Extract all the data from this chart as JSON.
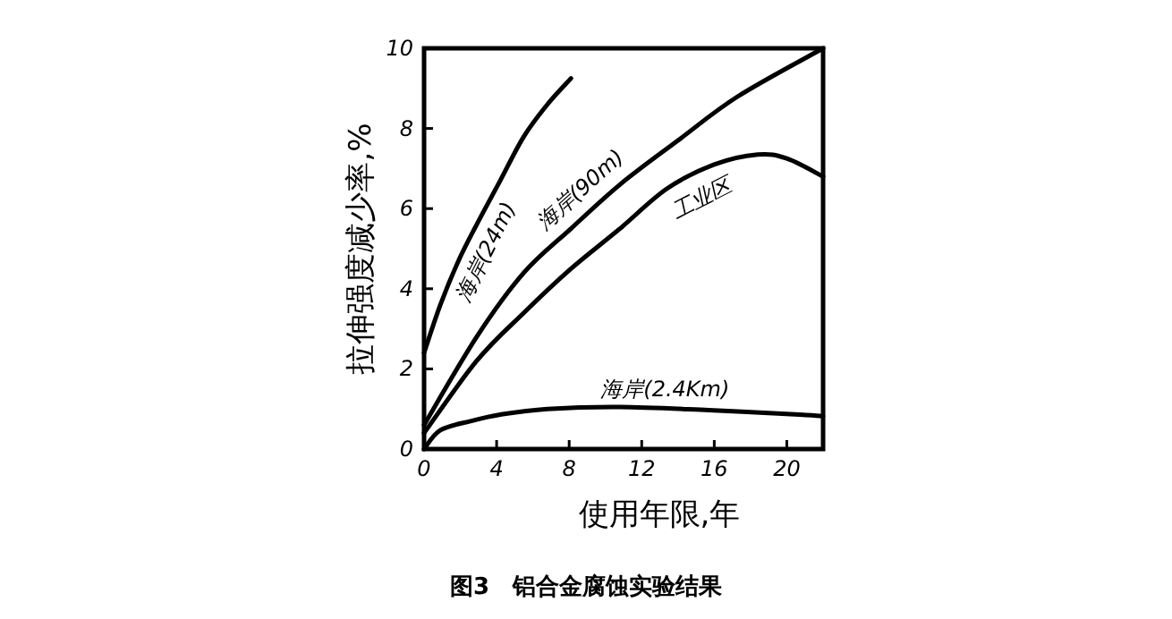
{
  "chart_data": {
    "type": "line",
    "title": "图3　铝合金腐蚀实验结果",
    "xlabel": "使用年限,年",
    "ylabel": "拉伸强度减少率,%",
    "xlim": [
      0,
      22
    ],
    "ylim": [
      0,
      10
    ],
    "xticks": [
      0,
      4,
      8,
      12,
      16,
      20
    ],
    "yticks": [
      0,
      2,
      4,
      6,
      8,
      10
    ],
    "grid": false,
    "marker": "none",
    "line_style": "solid",
    "series": [
      {
        "name": "海岸(24m)",
        "color": "#000000",
        "x": [
          0,
          0.9,
          1.9,
          2.9,
          4.2,
          5.5,
          6.8,
          8.1
        ],
        "values": [
          2.4,
          3.6,
          4.7,
          5.6,
          6.7,
          7.8,
          8.6,
          9.25
        ]
      },
      {
        "name": "海岸(90m)",
        "color": "#000000",
        "x": [
          0,
          2.9,
          5.5,
          8.1,
          10.8,
          14,
          17.3,
          22
        ],
        "values": [
          0.6,
          2.8,
          4.4,
          5.5,
          6.6,
          7.7,
          8.8,
          10
        ]
      },
      {
        "name": "工业区",
        "color": "#000000",
        "x": [
          0,
          2.9,
          5.5,
          8.1,
          10.8,
          13.4,
          16,
          18.4,
          20,
          22
        ],
        "values": [
          0.4,
          2.2,
          3.4,
          4.5,
          5.5,
          6.5,
          7.1,
          7.35,
          7.25,
          6.8
        ]
      },
      {
        "name": "海岸(2.4Km)",
        "color": "#000000",
        "x": [
          0,
          0.9,
          2.6,
          4.2,
          6.8,
          10.8,
          15.7,
          20.7,
          22
        ],
        "values": [
          0,
          0.47,
          0.7,
          0.86,
          1.0,
          1.05,
          0.97,
          0.86,
          0.82
        ]
      }
    ]
  }
}
